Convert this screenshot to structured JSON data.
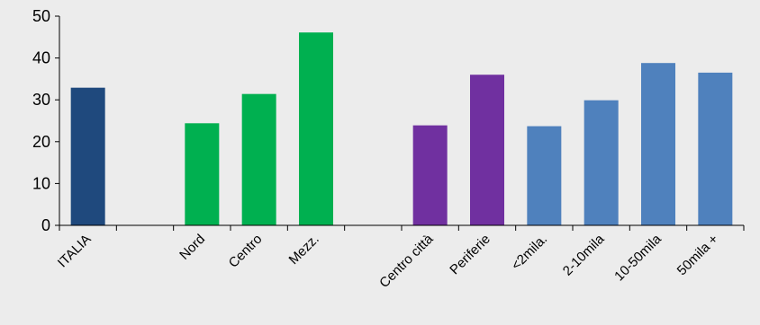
{
  "chart_data": {
    "type": "bar",
    "title": "",
    "xlabel": "",
    "ylabel": "",
    "ylim": [
      0,
      50
    ],
    "yticks": [
      "0",
      "10",
      "20",
      "30",
      "40",
      "50"
    ],
    "grid": false,
    "categories": [
      "ITALIA",
      "",
      "Nord",
      "Centro",
      "Mezz.",
      "",
      "Centro città",
      "Periferie",
      "<2mila.",
      "2-10mila",
      "10-50mila",
      "50mila +"
    ],
    "values": [
      32.9,
      null,
      24.4,
      31.4,
      46.1,
      null,
      23.9,
      36.0,
      23.7,
      29.9,
      38.8,
      36.5
    ],
    "colors": [
      "#1f497d",
      null,
      "#00b050",
      "#00b050",
      "#00b050",
      null,
      "#7030a0",
      "#7030a0",
      "#4f81bd",
      "#4f81bd",
      "#4f81bd",
      "#4f81bd"
    ]
  }
}
